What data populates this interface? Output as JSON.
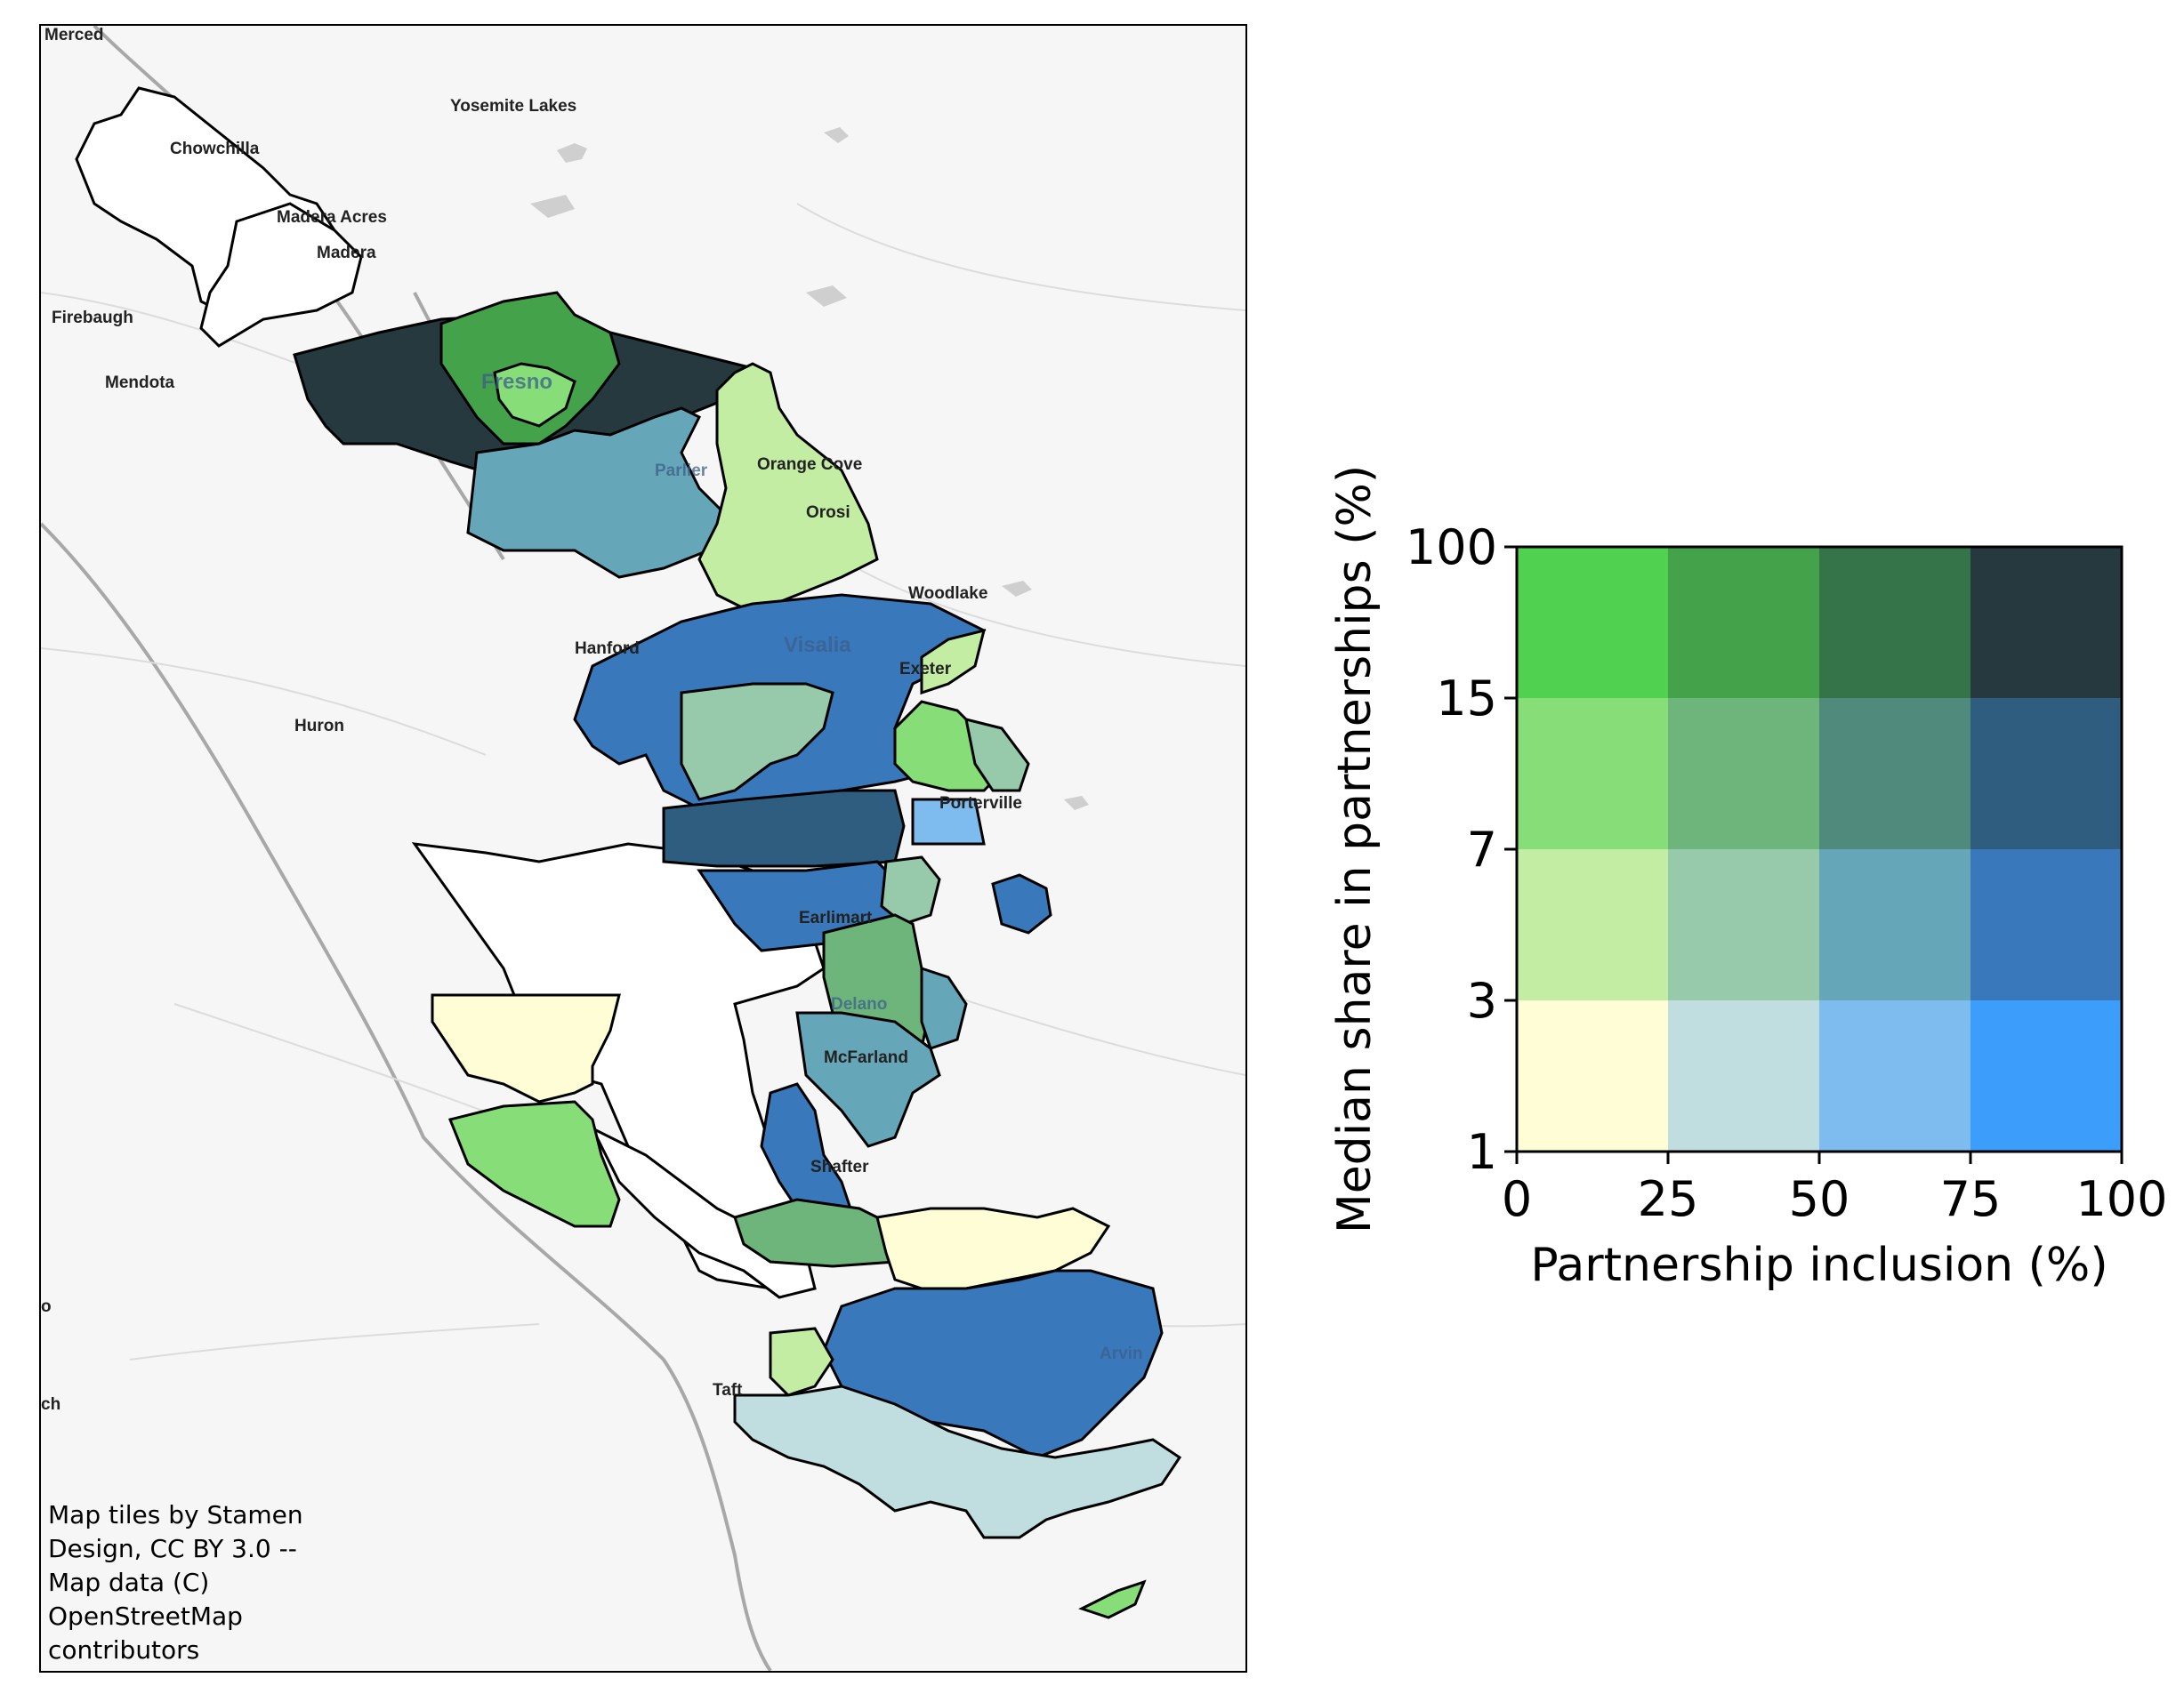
{
  "map": {
    "place_labels": [
      {
        "id": "merced",
        "text": "Merced"
      },
      {
        "id": "yosemite-lakes",
        "text": "Yosemite Lakes"
      },
      {
        "id": "chowchilla",
        "text": "Chowchilla"
      },
      {
        "id": "madera-acres",
        "text": "Madera Acres"
      },
      {
        "id": "madera",
        "text": "Madera"
      },
      {
        "id": "firebaugh",
        "text": "Firebaugh"
      },
      {
        "id": "mendota",
        "text": "Mendota"
      },
      {
        "id": "fresno",
        "text": "Fresno"
      },
      {
        "id": "parlier",
        "text": "Parlier"
      },
      {
        "id": "orange-cove",
        "text": "Orange Cove"
      },
      {
        "id": "orosi",
        "text": "Orosi"
      },
      {
        "id": "woodlake",
        "text": "Woodlake"
      },
      {
        "id": "hanford",
        "text": "Hanford"
      },
      {
        "id": "visalia",
        "text": "Visalia"
      },
      {
        "id": "exeter",
        "text": "Exeter"
      },
      {
        "id": "huron",
        "text": "Huron"
      },
      {
        "id": "porterville",
        "text": "Porterville"
      },
      {
        "id": "earlimart",
        "text": "Earlimart"
      },
      {
        "id": "delano",
        "text": "Delano"
      },
      {
        "id": "mcfarland",
        "text": "McFarland"
      },
      {
        "id": "shafter",
        "text": "Shafter"
      },
      {
        "id": "arvin",
        "text": "Arvin"
      },
      {
        "id": "taft",
        "text": "Taft"
      },
      {
        "id": "edge-o",
        "text": "o"
      },
      {
        "id": "edge-ch",
        "text": "ch"
      }
    ],
    "attribution": "Map tiles by Stamen Design, CC BY 3.0 -- Map data (C) OpenStreetMap contributors"
  },
  "legend": {
    "x_label": "Partnership inclusion (%)",
    "y_label": "Median share in partnerships (%)",
    "x_ticks": [
      "0",
      "25",
      "50",
      "75",
      "100"
    ],
    "y_ticks": [
      "1",
      "3",
      "7",
      "15",
      "100"
    ],
    "rows_top_to_bottom": [
      [
        "#51d150",
        "#44a24a",
        "#357448",
        "#26393e"
      ],
      [
        "#87de78",
        "#6db57a",
        "#4f8a7d",
        "#2f5d80"
      ],
      [
        "#c4eda4",
        "#96caaa",
        "#65a6b8",
        "#3878bb"
      ],
      [
        "#fefdd6",
        "#c0dee0",
        "#7ebbee",
        "#3d9dfb"
      ]
    ]
  },
  "colors": {
    "background": "#ffffff",
    "map_base": "#f6f6f6",
    "boundary": "#000000",
    "road": "#a8a8a8"
  }
}
